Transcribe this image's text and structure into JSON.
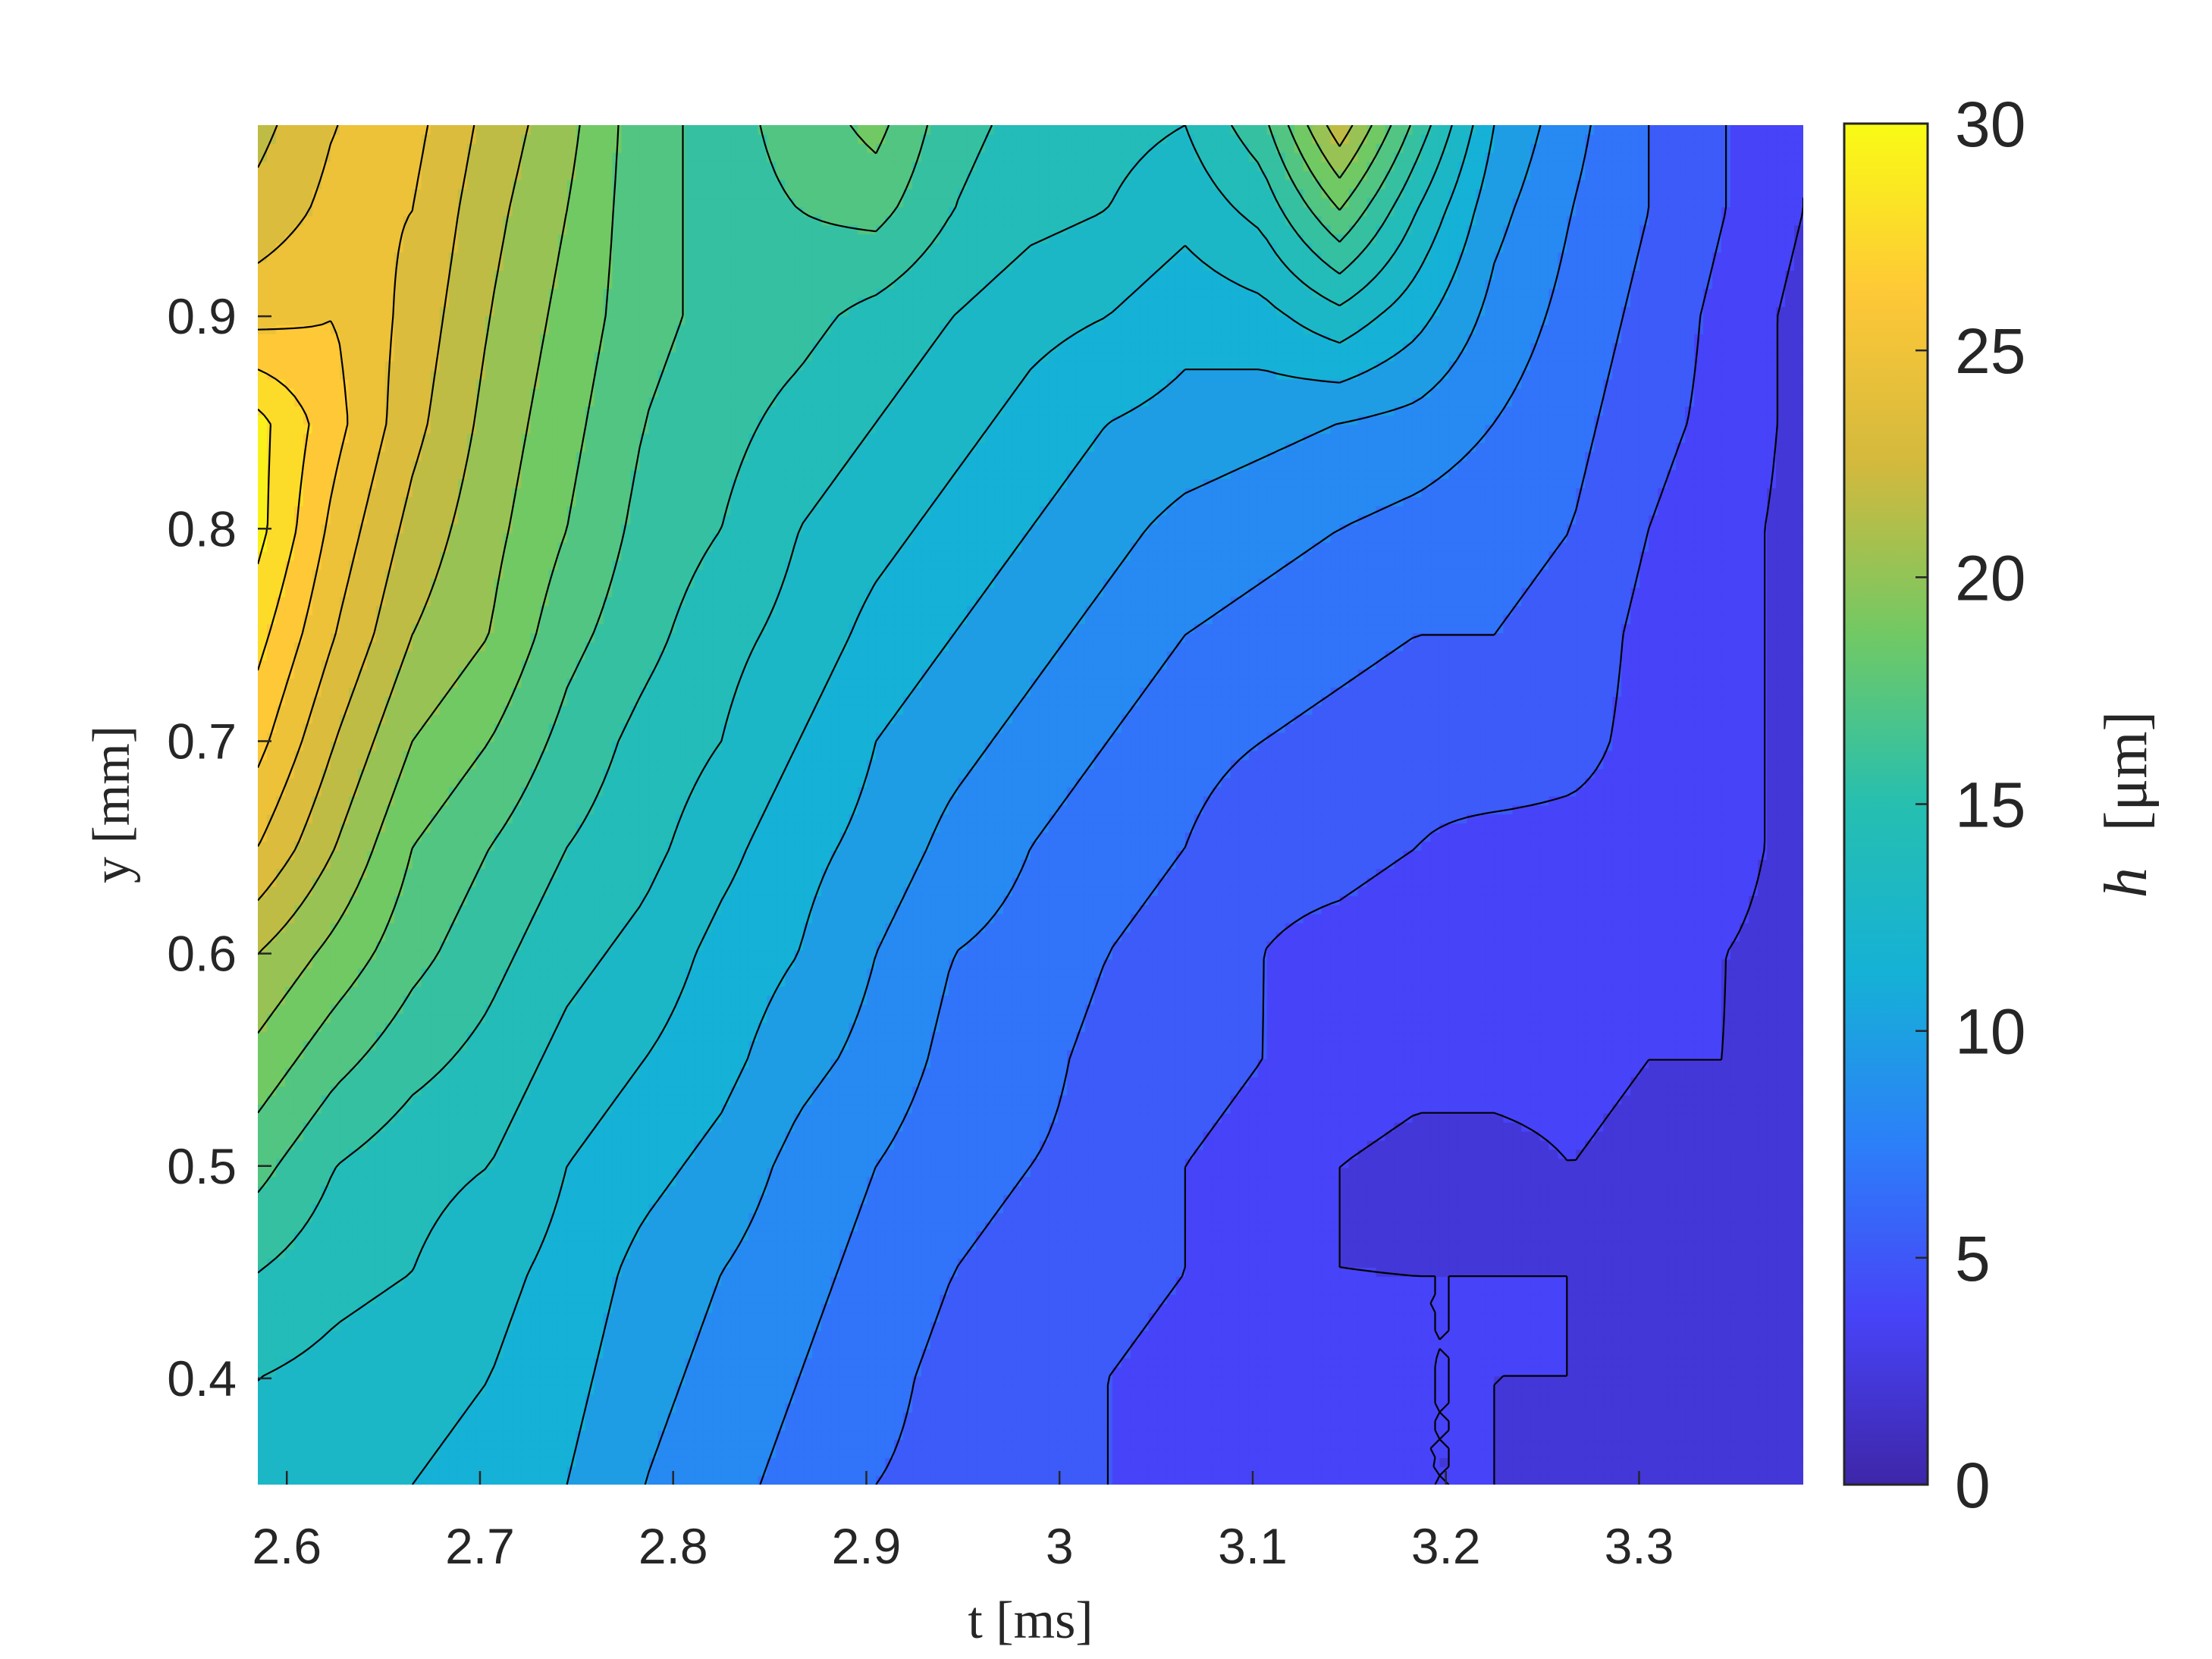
{
  "chart_data": {
    "type": "heatmap",
    "subtype": "filled-contour",
    "title": "",
    "xlabel": "t [ms]",
    "ylabel": "y [mm]",
    "colorbar_label": "h [μm]",
    "colorbar_label_parts": {
      "var": "h",
      "unit": "[μm]"
    },
    "xlim": [
      2.585,
      3.385
    ],
    "ylim": [
      0.35,
      0.99
    ],
    "x_ticks": [
      2.6,
      2.7,
      2.8,
      2.9,
      3.0,
      3.1,
      3.2,
      3.3
    ],
    "x_tick_labels": [
      "2.6",
      "2.7",
      "2.8",
      "2.9",
      "3",
      "3.1",
      "3.2",
      "3.3"
    ],
    "y_ticks": [
      0.4,
      0.5,
      0.6,
      0.7,
      0.8,
      0.9
    ],
    "y_tick_labels": [
      "0.4",
      "0.5",
      "0.6",
      "0.7",
      "0.8",
      "0.9"
    ],
    "colorbar_range": [
      0,
      30
    ],
    "colorbar_ticks": [
      0,
      5,
      10,
      15,
      20,
      25,
      30
    ],
    "colorbar_tick_labels": [
      "0",
      "5",
      "10",
      "15",
      "20",
      "25",
      "30"
    ],
    "colormap": "parula",
    "colormap_stops": [
      "#3e26a8",
      "#4743f8",
      "#2c7ff9",
      "#15b1d6",
      "#26bfb0",
      "#71c964",
      "#d3b93d",
      "#fec837",
      "#f9fb15"
    ],
    "contour_levels": [
      1.5,
      3,
      4.5,
      6,
      7.5,
      9,
      10.5,
      12,
      13.5,
      15,
      16.5,
      18,
      19.5,
      21,
      22.5,
      24,
      25.5,
      27,
      28.5
    ],
    "grid": false,
    "legend": "none",
    "field_description": "h decreases from ~27 at t=2.6 (y~0.8) to ~2 at t=3.35; bright yellow peak near t=2.59, y=0.78-0.85; local green/teal bump near t=3.14, y=0.9-0.99; teal ridge near t=2.9, y=0.96",
    "samples_t": [
      2.585,
      2.625,
      2.665,
      2.705,
      2.745,
      2.785,
      2.825,
      2.865,
      2.905,
      2.945,
      2.985,
      3.025,
      3.065,
      3.105,
      3.145,
      3.185,
      3.225,
      3.265,
      3.305,
      3.345,
      3.385
    ],
    "samples_y": [
      0.35,
      0.4,
      0.45,
      0.5,
      0.55,
      0.6,
      0.65,
      0.7,
      0.75,
      0.8,
      0.85,
      0.9,
      0.95,
      0.99
    ],
    "h_values": [
      [
        13,
        12.5,
        12,
        11.5,
        10.5,
        9,
        8,
        7,
        6,
        5.5,
        5,
        4.5,
        4,
        3.5,
        3.5,
        3,
        3,
        2,
        2,
        2,
        2
      ],
      [
        13.5,
        13,
        12.5,
        12,
        11,
        9.5,
        8.5,
        7.5,
        6.5,
        5.5,
        5,
        4.5,
        4,
        3.5,
        3.5,
        3,
        3,
        3,
        2.5,
        2.5,
        2.5
      ],
      [
        15,
        14,
        13.5,
        12.5,
        11.5,
        10,
        9,
        8,
        7,
        6,
        5.5,
        5,
        4.5,
        3.5,
        3,
        3,
        3,
        3,
        2.5,
        2.5,
        2.5
      ],
      [
        17,
        15,
        14,
        13.5,
        12,
        11,
        10,
        8.5,
        7.5,
        6.5,
        6,
        5.5,
        4.5,
        4,
        3,
        2.5,
        2.5,
        3,
        2.5,
        3,
        2.5
      ],
      [
        19,
        17,
        15.5,
        14.5,
        13,
        12,
        11,
        9.5,
        8.5,
        7,
        6.5,
        5.5,
        5,
        4.5,
        4,
        3.5,
        3.5,
        3.5,
        3,
        3,
        2.5
      ],
      [
        21,
        19,
        17,
        15.5,
        14,
        13,
        11.5,
        10.5,
        9,
        7.5,
        7,
        6,
        5.5,
        4.5,
        4,
        3.5,
        3.5,
        3.5,
        3.5,
        3,
        2.5
      ],
      [
        24,
        21,
        18,
        16.5,
        15,
        14,
        12.5,
        11,
        10,
        8.5,
        7.5,
        6.5,
        6,
        5,
        5,
        4.5,
        4,
        4,
        4,
        3.5,
        2.5
      ],
      [
        26,
        22.5,
        19.5,
        18,
        16,
        14.5,
        13.5,
        12,
        10.5,
        9.5,
        8.5,
        7.5,
        6.5,
        6,
        5.5,
        5,
        5.5,
        5,
        4,
        3.5,
        2.5
      ],
      [
        27.5,
        24,
        21,
        19.5,
        17,
        15.5,
        14,
        13,
        11.5,
        10.5,
        9.5,
        8.5,
        7.5,
        7,
        6.5,
        6,
        6,
        5.5,
        4,
        3.5,
        2.5
      ],
      [
        29,
        25,
        22,
        20,
        18,
        16,
        15,
        13.5,
        12.5,
        11.5,
        10.5,
        9.5,
        8.5,
        8,
        7.5,
        7,
        6.5,
        6,
        4.5,
        3.5,
        2.5
      ],
      [
        29,
        26,
        23,
        20.5,
        18.5,
        16.5,
        15.5,
        14.5,
        13.5,
        12.5,
        11.5,
        10.5,
        10,
        9.5,
        9,
        8.5,
        7.5,
        6.5,
        5,
        4,
        2.5
      ],
      [
        25,
        25.5,
        23.5,
        21,
        19,
        17,
        16,
        15.5,
        14.5,
        13.5,
        12.5,
        12,
        11,
        11.5,
        13,
        11,
        8.5,
        7,
        5.5,
        4,
        2.5
      ],
      [
        23,
        24.5,
        24,
        21.5,
        19.5,
        17,
        16,
        16.5,
        17,
        15,
        14,
        13.5,
        12.5,
        14,
        18,
        13.5,
        9.5,
        7.5,
        6,
        4.5,
        3
      ],
      [
        22,
        24,
        24.5,
        22,
        20,
        17,
        16,
        17,
        18.5,
        15.5,
        14.5,
        14,
        13.5,
        16,
        22,
        16,
        10.5,
        8,
        6,
        4.5,
        3
      ]
    ]
  }
}
